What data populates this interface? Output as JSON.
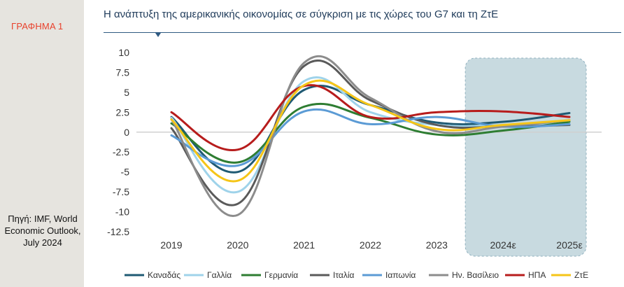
{
  "panel": {
    "figure_label": "ΓΡΑΦΗΜΑ 1",
    "source_note": "Πηγή: IMF, World Economic Outlook, July 2024"
  },
  "chart_data": {
    "type": "line",
    "title": "Η ανάπτυξη της αμερικανικής οικονομίας σε σύγκριση με τις χώρες του G7 και τη ΖτΕ",
    "xlabel": "",
    "ylabel": "",
    "categories": [
      "2019",
      "2020",
      "2021",
      "2022",
      "2023",
      "2024ε",
      "2025ε"
    ],
    "y_ticks": [
      "10",
      "7.5",
      "5",
      "2.5",
      "0",
      "-2.5",
      "-5",
      "-7.5",
      "-10",
      "-12.5"
    ],
    "ylim": [
      -12.5,
      10
    ],
    "smooth": true,
    "grid": false,
    "legend_position": "bottom",
    "forecast_shading": {
      "from": "2024ε",
      "to": "2025ε",
      "color": "#b5cdd6"
    },
    "series": [
      {
        "name": "Καναδάς",
        "color": "#1f5a73",
        "values": [
          1.9,
          -5.0,
          5.3,
          3.4,
          1.2,
          1.3,
          2.4
        ]
      },
      {
        "name": "Γαλλία",
        "color": "#9fd3ea",
        "values": [
          1.8,
          -7.5,
          6.4,
          2.5,
          0.9,
          0.9,
          1.3
        ]
      },
      {
        "name": "Γερμανία",
        "color": "#2e7d32",
        "values": [
          1.1,
          -3.8,
          3.2,
          1.8,
          -0.3,
          0.2,
          1.3
        ]
      },
      {
        "name": "Ιταλία",
        "color": "#5a5a5a",
        "values": [
          0.5,
          -9.0,
          8.3,
          4.0,
          0.9,
          0.7,
          0.9
        ]
      },
      {
        "name": "Ιαπωνία",
        "color": "#5b9bd5",
        "values": [
          -0.4,
          -4.2,
          2.6,
          1.0,
          1.9,
          0.7,
          1.0
        ]
      },
      {
        "name": "Ην. Βασίλειο",
        "color": "#8c8c8c",
        "values": [
          1.6,
          -10.4,
          8.7,
          4.3,
          0.1,
          0.7,
          1.5
        ]
      },
      {
        "name": "ΗΠΑ",
        "color": "#b71c1c",
        "values": [
          2.5,
          -2.2,
          5.8,
          1.9,
          2.5,
          2.6,
          1.9
        ]
      },
      {
        "name": "ΖτΕ",
        "color": "#f5c518",
        "values": [
          1.6,
          -6.1,
          5.9,
          3.4,
          0.4,
          0.9,
          1.5
        ]
      }
    ]
  }
}
